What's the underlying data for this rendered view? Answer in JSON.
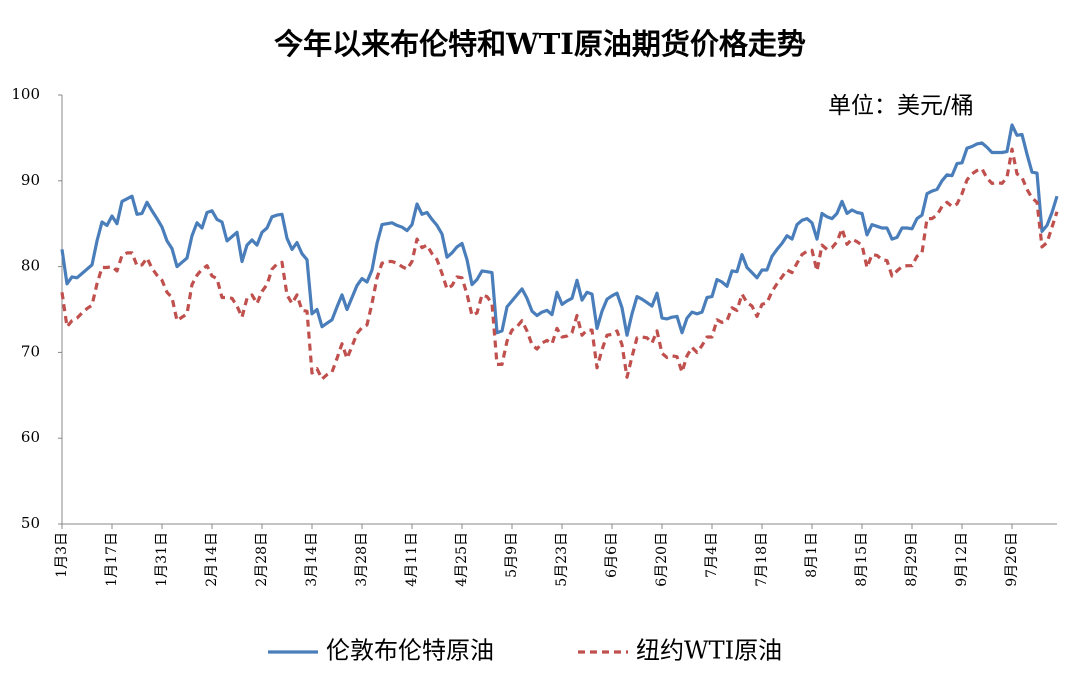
{
  "chart_data": {
    "type": "line",
    "title": "今年以来布伦特和WTI原油期货价格走势",
    "unit": "单位：美元/桶",
    "categories": [
      "1月3日",
      null,
      null,
      null,
      null,
      null,
      null,
      null,
      null,
      null,
      "1月17日",
      null,
      null,
      null,
      null,
      null,
      null,
      null,
      null,
      null,
      "1月31日",
      null,
      null,
      null,
      null,
      null,
      null,
      null,
      null,
      null,
      "2月14日",
      null,
      null,
      null,
      null,
      null,
      null,
      null,
      null,
      null,
      "2月28日",
      null,
      null,
      null,
      null,
      null,
      null,
      null,
      null,
      null,
      "3月14日",
      null,
      null,
      null,
      null,
      null,
      null,
      null,
      null,
      null,
      "3月28日",
      null,
      null,
      null,
      null,
      null,
      null,
      null,
      null,
      null,
      "4月11日",
      null,
      null,
      null,
      null,
      null,
      null,
      null,
      null,
      null,
      "4月25日",
      null,
      null,
      null,
      null,
      null,
      null,
      null,
      null,
      null,
      "5月9日",
      null,
      null,
      null,
      null,
      null,
      null,
      null,
      null,
      null,
      "5月23日",
      null,
      null,
      null,
      null,
      null,
      null,
      null,
      null,
      null,
      "6月6日",
      null,
      null,
      null,
      null,
      null,
      null,
      null,
      null,
      null,
      "6月20日",
      null,
      null,
      null,
      null,
      null,
      null,
      null,
      null,
      null,
      "7月4日",
      null,
      null,
      null,
      null,
      null,
      null,
      null,
      null,
      null,
      "7月18日",
      null,
      null,
      null,
      null,
      null,
      null,
      null,
      null,
      null,
      "8月1日",
      null,
      null,
      null,
      null,
      null,
      null,
      null,
      null,
      null,
      "8月15日",
      null,
      null,
      null,
      null,
      null,
      null,
      null,
      null,
      null,
      "8月29日",
      null,
      null,
      null,
      null,
      null,
      null,
      null,
      null,
      null,
      "9月12日",
      null,
      null,
      null,
      null,
      null,
      null,
      null,
      null,
      null,
      "9月26日",
      null,
      null,
      null,
      null,
      null,
      null,
      null,
      null,
      null
    ],
    "series": [
      {
        "name": "伦敦布伦特原油",
        "color": "#4a7ebb",
        "dash": false,
        "values": [
          82.0,
          78.0,
          78.8,
          78.7,
          79.2,
          79.7,
          80.2,
          83.0,
          85.2,
          84.8,
          85.9,
          85.0,
          87.6,
          87.9,
          88.2,
          86.1,
          86.2,
          87.5,
          86.5,
          85.6,
          84.6,
          83.0,
          82.1,
          80.0,
          80.5,
          81.0,
          83.6,
          85.1,
          84.5,
          86.3,
          86.5,
          85.5,
          85.2,
          83.0,
          83.5,
          84.0,
          80.6,
          82.5,
          83.1,
          82.5,
          84.0,
          84.5,
          85.8,
          86.0,
          86.1,
          83.3,
          82.0,
          82.8,
          81.5,
          80.8,
          74.5,
          75.0,
          73.0,
          73.4,
          73.8,
          75.3,
          76.7,
          75.0,
          76.4,
          77.8,
          78.6,
          78.2,
          79.6,
          82.7,
          84.9,
          85.0,
          85.1,
          84.8,
          84.6,
          84.2,
          84.9,
          87.3,
          86.1,
          86.3,
          85.5,
          84.8,
          83.8,
          81.1,
          81.6,
          82.3,
          82.7,
          80.8,
          77.9,
          78.5,
          79.5,
          79.4,
          79.3,
          72.3,
          72.5,
          75.3,
          76.0,
          76.7,
          77.4,
          76.3,
          74.8,
          74.3,
          74.7,
          74.9,
          74.4,
          77.0,
          75.6,
          76.0,
          76.3,
          78.4,
          76.1,
          77.0,
          76.8,
          72.8,
          74.8,
          76.2,
          76.6,
          76.9,
          75.2,
          72.0,
          74.5,
          76.5,
          76.2,
          75.8,
          75.4,
          76.9,
          74.0,
          73.9,
          74.1,
          74.2,
          72.3,
          74.0,
          74.7,
          74.5,
          74.7,
          76.4,
          76.5,
          78.5,
          78.2,
          77.7,
          79.5,
          79.4,
          81.4,
          79.9,
          79.3,
          78.7,
          79.6,
          79.6,
          81.2,
          82.0,
          82.7,
          83.6,
          83.2,
          84.9,
          85.4,
          85.6,
          85.1,
          83.2,
          86.2,
          85.8,
          85.6,
          86.2,
          87.6,
          86.2,
          86.6,
          86.3,
          86.2,
          83.7,
          84.9,
          84.7,
          84.5,
          84.5,
          83.2,
          83.4,
          84.5,
          84.5,
          84.4,
          85.6,
          86.0,
          88.5,
          88.8,
          89.0,
          90.0,
          90.7,
          90.6,
          92.0,
          92.1,
          93.8,
          94.0,
          94.3,
          94.4,
          93.9,
          93.3,
          93.3,
          93.3,
          93.4,
          96.5,
          95.3,
          95.4,
          93.1,
          91.0,
          90.9,
          84.1,
          84.8,
          86.3,
          88.2
        ]
      },
      {
        "name": "纽约WTI原油",
        "color": "#c0504d",
        "dash": true,
        "values": [
          77.0,
          73.0,
          73.7,
          74.0,
          74.6,
          75.1,
          75.5,
          78.0,
          79.9,
          79.9,
          80.0,
          79.5,
          81.3,
          81.6,
          81.6,
          80.1,
          80.2,
          81.0,
          79.8,
          79.0,
          78.4,
          77.0,
          76.4,
          73.7,
          74.1,
          74.5,
          77.9,
          79.0,
          79.7,
          80.1,
          78.9,
          78.6,
          76.4,
          76.4,
          76.3,
          75.4,
          74.1,
          76.3,
          76.7,
          75.7,
          77.1,
          77.9,
          79.7,
          80.3,
          80.5,
          76.7,
          75.7,
          76.7,
          74.9,
          74.8,
          67.6,
          68.1,
          66.9,
          67.4,
          67.7,
          69.3,
          71.0,
          69.3,
          70.7,
          72.2,
          72.9,
          73.2,
          75.7,
          78.7,
          80.4,
          80.6,
          80.6,
          80.4,
          80.0,
          79.7,
          80.6,
          83.2,
          82.2,
          82.5,
          81.5,
          80.8,
          79.2,
          77.4,
          77.8,
          78.8,
          78.7,
          76.8,
          74.3,
          74.6,
          76.7,
          76.5,
          75.7,
          68.6,
          68.6,
          71.3,
          72.6,
          73.0,
          73.7,
          72.5,
          70.9,
          70.4,
          71.1,
          71.4,
          71.0,
          72.8,
          71.8,
          71.9,
          72.3,
          74.3,
          72.0,
          72.6,
          72.6,
          68.2,
          70.3,
          72.0,
          72.1,
          72.5,
          70.9,
          67.1,
          69.5,
          71.7,
          71.8,
          71.7,
          71.1,
          72.5,
          69.9,
          69.4,
          69.6,
          69.5,
          67.7,
          69.6,
          70.6,
          70.0,
          70.8,
          71.8,
          71.8,
          73.8,
          73.5,
          73.7,
          75.2,
          74.9,
          76.8,
          75.8,
          75.4,
          74.2,
          75.6,
          75.8,
          77.1,
          78.0,
          78.8,
          79.6,
          79.3,
          80.4,
          81.4,
          81.8,
          81.9,
          79.5,
          82.5,
          82.0,
          82.2,
          82.9,
          84.4,
          82.6,
          83.2,
          82.9,
          82.5,
          79.9,
          81.4,
          81.3,
          80.8,
          80.7,
          78.9,
          79.5,
          80.0,
          80.1,
          80.1,
          81.2,
          81.6,
          85.6,
          85.6,
          86.0,
          87.0,
          87.5,
          87.0,
          87.3,
          88.5,
          90.1,
          90.8,
          91.2,
          91.4,
          90.3,
          89.7,
          89.8,
          89.7,
          90.4,
          93.7,
          90.8,
          90.4,
          89.0,
          88.0,
          87.5,
          82.3,
          82.8,
          84.6,
          86.4
        ]
      }
    ],
    "ylim": [
      50,
      100
    ],
    "yticks": [
      50,
      60,
      70,
      80,
      90,
      100
    ],
    "grid": false,
    "legend": "bottom"
  }
}
